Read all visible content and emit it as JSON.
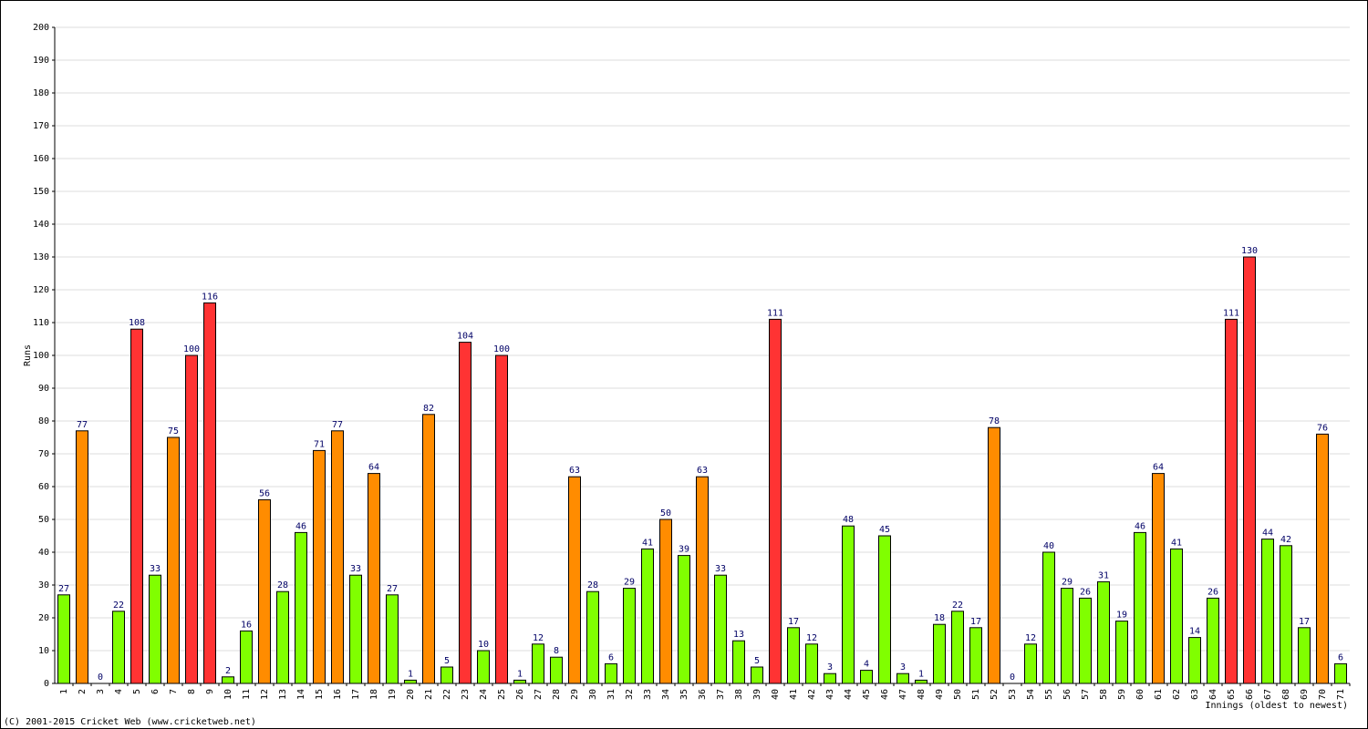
{
  "chart_data": {
    "type": "bar",
    "x_label": "Innings (oldest to newest)",
    "y_label": "Runs",
    "footer": "(C) 2001-2015 Cricket Web (www.cricketweb.net)",
    "categories": [
      "1",
      "2",
      "3",
      "4",
      "5",
      "6",
      "7",
      "8",
      "9",
      "10",
      "11",
      "12",
      "13",
      "14",
      "15",
      "16",
      "17",
      "18",
      "19",
      "20",
      "21",
      "22",
      "23",
      "24",
      "25",
      "26",
      "27",
      "28",
      "29",
      "30",
      "31",
      "32",
      "33",
      "34",
      "35",
      "36",
      "37",
      "38",
      "39",
      "40",
      "41",
      "42",
      "43",
      "44",
      "45",
      "46",
      "47",
      "48",
      "49",
      "50",
      "51",
      "52",
      "53",
      "54",
      "55",
      "56",
      "57",
      "58",
      "59",
      "60",
      "61",
      "62",
      "63",
      "64",
      "65",
      "66",
      "67",
      "68",
      "69",
      "70",
      "71"
    ],
    "values": [
      27,
      77,
      0,
      22,
      108,
      33,
      75,
      100,
      116,
      2,
      16,
      56,
      28,
      46,
      71,
      77,
      33,
      64,
      27,
      1,
      82,
      5,
      104,
      10,
      100,
      1,
      12,
      8,
      63,
      28,
      6,
      29,
      41,
      50,
      39,
      63,
      33,
      13,
      5,
      111,
      17,
      12,
      3,
      48,
      4,
      45,
      3,
      1,
      18,
      22,
      17,
      78,
      0,
      12,
      40,
      29,
      26,
      31,
      19,
      46,
      64,
      41,
      14,
      26,
      111,
      130,
      44,
      42,
      17,
      76,
      6
    ],
    "colors": [
      "#80ff00",
      "#ff8c00",
      "#80ff00",
      "#80ff00",
      "#ff3333",
      "#80ff00",
      "#ff8c00",
      "#ff3333",
      "#ff3333",
      "#80ff00",
      "#80ff00",
      "#ff8c00",
      "#80ff00",
      "#80ff00",
      "#ff8c00",
      "#ff8c00",
      "#80ff00",
      "#ff8c00",
      "#80ff00",
      "#80ff00",
      "#ff8c00",
      "#80ff00",
      "#ff3333",
      "#80ff00",
      "#ff3333",
      "#80ff00",
      "#80ff00",
      "#80ff00",
      "#ff8c00",
      "#80ff00",
      "#80ff00",
      "#80ff00",
      "#80ff00",
      "#ff8c00",
      "#80ff00",
      "#ff8c00",
      "#80ff00",
      "#80ff00",
      "#80ff00",
      "#ff3333",
      "#80ff00",
      "#80ff00",
      "#80ff00",
      "#80ff00",
      "#80ff00",
      "#80ff00",
      "#80ff00",
      "#80ff00",
      "#80ff00",
      "#80ff00",
      "#80ff00",
      "#ff8c00",
      "#80ff00",
      "#80ff00",
      "#80ff00",
      "#80ff00",
      "#80ff00",
      "#80ff00",
      "#80ff00",
      "#80ff00",
      "#ff8c00",
      "#80ff00",
      "#80ff00",
      "#80ff00",
      "#ff3333",
      "#ff3333",
      "#80ff00",
      "#80ff00",
      "#80ff00",
      "#ff8c00",
      "#80ff00"
    ],
    "ylim": [
      0,
      200
    ],
    "yticks": [
      0,
      10,
      20,
      30,
      40,
      50,
      60,
      70,
      80,
      90,
      100,
      110,
      120,
      130,
      140,
      150,
      160,
      170,
      180,
      190,
      200
    ],
    "grid": true
  }
}
